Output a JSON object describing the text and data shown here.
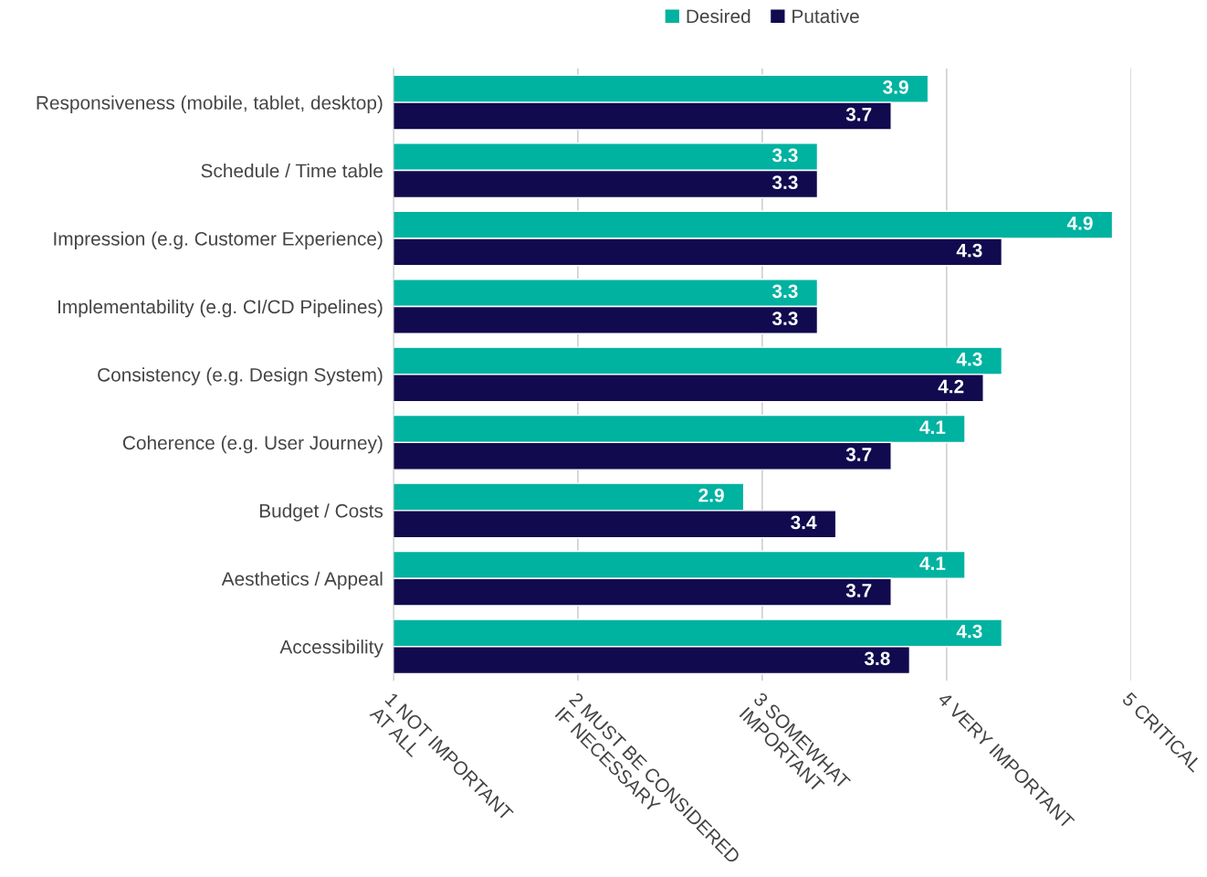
{
  "chart_data": {
    "type": "bar",
    "orientation": "horizontal",
    "categories": [
      "Responsiveness (mobile, tablet, desktop)",
      "Schedule / Time table",
      "Impression (e.g. Customer Experience)",
      "Implementability (e.g. CI/CD Pipelines)",
      "Consistency (e.g. Design System)",
      "Coherence (e.g. User Journey)",
      "Budget / Costs",
      "Aesthetics / Appeal",
      "Accessibility"
    ],
    "series": [
      {
        "name": "Desired",
        "color": "#00b2a0",
        "values": [
          3.9,
          3.3,
          4.9,
          3.3,
          4.3,
          4.1,
          2.9,
          4.1,
          4.3
        ]
      },
      {
        "name": "Putative",
        "color": "#110a4f",
        "values": [
          3.7,
          3.3,
          4.3,
          3.3,
          4.2,
          3.7,
          3.4,
          3.7,
          3.8
        ]
      }
    ],
    "xlim": [
      1,
      5
    ],
    "xticks": [
      {
        "value": 1,
        "label": "1 NOT IMPORTANT\nAT ALL"
      },
      {
        "value": 2,
        "label": "2 MUST BE CONSIDERED\nIF NECESSARY"
      },
      {
        "value": 3,
        "label": "3 SOMEWHAT\nIMPORTANT"
      },
      {
        "value": 4,
        "label": "4 VERY IMPORTANT"
      },
      {
        "value": 5,
        "label": "5 CRITICAL"
      }
    ],
    "grid": "x",
    "legend": "top",
    "data_labels": true
  }
}
